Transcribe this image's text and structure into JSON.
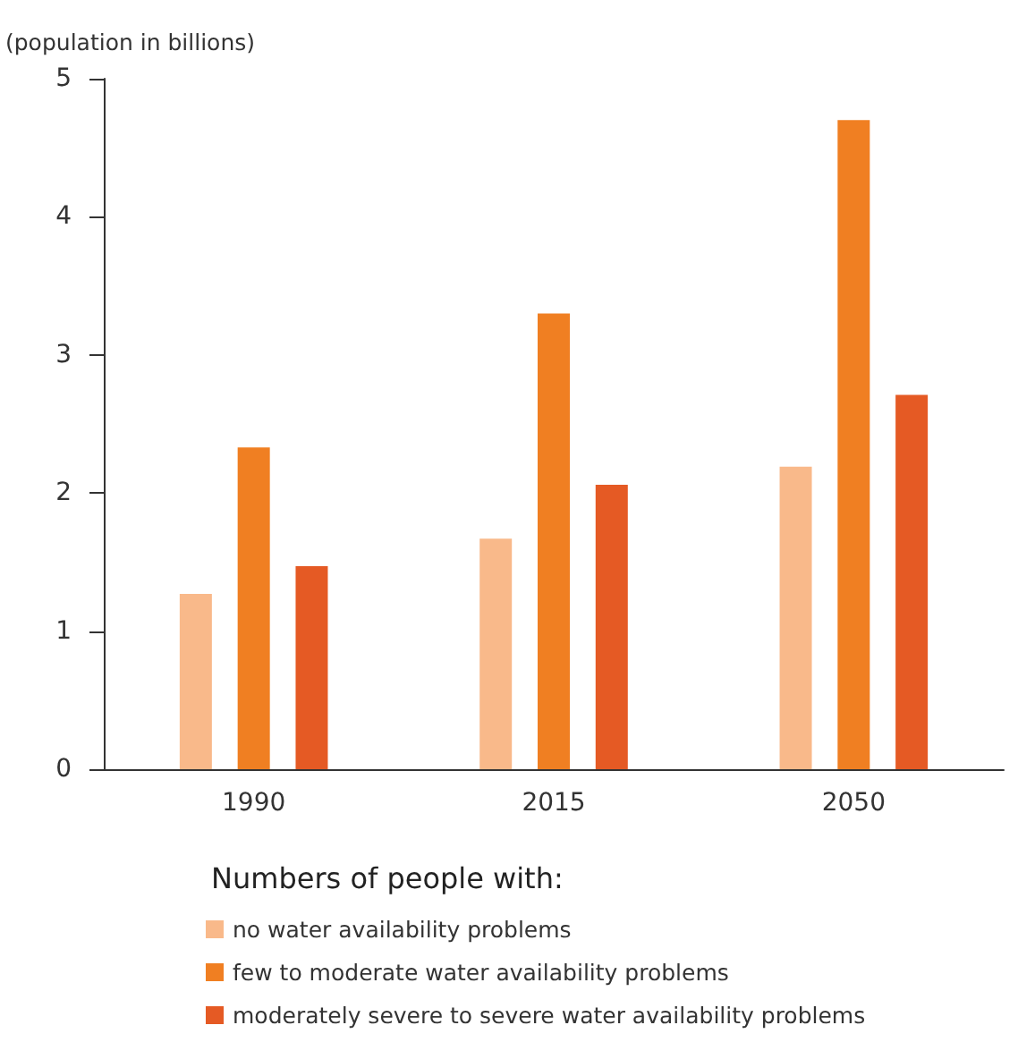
{
  "chart_data": {
    "type": "bar",
    "ylabel": "(population in billions)",
    "legend_title": "Numbers of people with:",
    "categories": [
      "1990",
      "2015",
      "2050"
    ],
    "series": [
      {
        "name": "no water availability problems",
        "color": "#f9b98a",
        "values": [
          1.27,
          1.67,
          2.19
        ]
      },
      {
        "name": "few to moderate water availability problems",
        "color": "#f07f22",
        "values": [
          2.33,
          3.3,
          4.7
        ]
      },
      {
        "name": "moderately severe to severe water availability problems",
        "color": "#e55a24",
        "values": [
          1.47,
          2.06,
          2.71
        ]
      }
    ],
    "ylim": [
      0,
      5
    ],
    "yticks": [
      0,
      1,
      2,
      3,
      4,
      5
    ],
    "grid": false,
    "legend": "bottom"
  }
}
